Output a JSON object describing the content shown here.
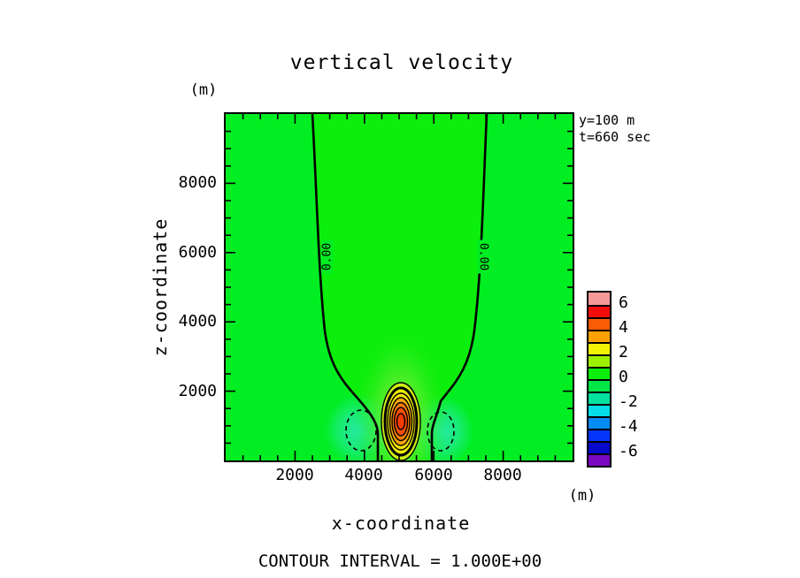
{
  "title": "vertical velocity",
  "annotations": {
    "line1": "y=100 m",
    "line2": "t=660 sec"
  },
  "axes": {
    "x": {
      "label": "x-coordinate",
      "unit": "(m)",
      "min": 0,
      "max": 10000,
      "major_step": 2000,
      "minor_step": 500,
      "tick_labels": [
        "2000",
        "4000",
        "6000",
        "8000"
      ]
    },
    "z": {
      "label": "z-coordinate",
      "unit": "(m)",
      "min": 0,
      "max": 10000,
      "major_step": 2000,
      "minor_step": 500,
      "tick_labels": [
        "8000",
        "6000",
        "4000",
        "2000"
      ]
    }
  },
  "footer": {
    "contour_interval_text": "CONTOUR INTERVAL = 1.000E+00"
  },
  "colorbar": {
    "min": -7,
    "max": 7,
    "segment_value": 1,
    "tick_labels": [
      "6",
      "4",
      "2",
      "0",
      "-2",
      "-4",
      "-6"
    ],
    "colors_top_to_bottom": [
      "#f59898",
      "#f20c0c",
      "#fa5c05",
      "#ffa305",
      "#f2f205",
      "#9ef005",
      "#0cee0c",
      "#00e647",
      "#00e1a0",
      "#05dce6",
      "#058cf5",
      "#0535fa",
      "#0808c8",
      "#7a08c0"
    ]
  },
  "chart_data": {
    "type": "heatmap",
    "subtype": "filled-contour",
    "title": "vertical velocity",
    "xlabel": "x-coordinate (m)",
    "ylabel": "z-coordinate (m)",
    "x_range": [
      0,
      10000
    ],
    "z_range": [
      0,
      10000
    ],
    "field": "vertical velocity",
    "contour_interval": 1.0,
    "zero_contour_label": "0.00",
    "slice": {
      "y_m": 100,
      "t_sec": 660
    },
    "background_value_range": [
      -1,
      1
    ],
    "zero_contour_x_at_top_m": [
      2500,
      7530
    ],
    "zero_contour_x_at_bottom_m": [
      4410,
      5940
    ],
    "features": {
      "updraft_core": {
        "x_m": 5050,
        "z_m": 1000,
        "peak_value": 7,
        "closed_contours": [
          1,
          2,
          3,
          4,
          5,
          6,
          7
        ],
        "thick_contour_value": 2
      },
      "downdraft_left": {
        "x_m": 3900,
        "z_m": 900,
        "min_value": -2,
        "dashed_contour_value": -1
      },
      "downdraft_right": {
        "x_m": 6200,
        "z_m": 900,
        "min_value": -2,
        "dashed_contour_value": -1
      }
    },
    "fill_colors": {
      "inside_zero_contour": "#0cee0c",
      "outside_zero_contour": "#00ee22",
      "updraft_bands_out_to_in": [
        "#9ef005",
        "#cdee14",
        "#eeee00",
        "#f2e205",
        "#ffa808",
        "#fb7d05",
        "#f54e08",
        "#f53c05"
      ],
      "downdraft_patch": "#2de8c2"
    }
  }
}
